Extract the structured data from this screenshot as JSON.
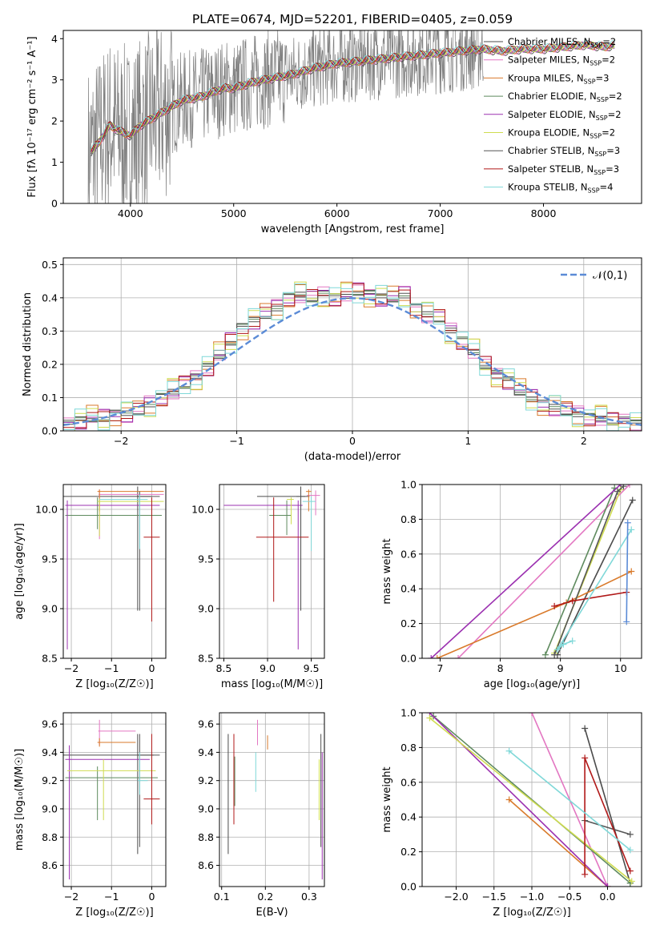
{
  "title": "PLATE=0674, MJD=52201, FIBERID=0405, z=0.059",
  "legend_labels": [
    "Chabrier MILES, N_SSP=2",
    "Salpeter MILES, N_SSP=2",
    "Kroupa MILES, N_SSP=3",
    "Chabrier ELODIE, N_SSP=2",
    "Salpeter ELODIE, N_SSP=2",
    "Kroupa ELODIE, N_SSP=2",
    "Chabrier STELIB, N_SSP=3",
    "Salpeter STELIB, N_SSP=3",
    "Kroupa STELIB, N_SSP=4"
  ],
  "model_colors": [
    "#4b4b4b",
    "#e377c2",
    "#d97a2b",
    "#5e8a5e",
    "#9b30b0",
    "#cfdc50",
    "#555555",
    "#b01818",
    "#7fd8d8"
  ],
  "chart_data": [
    {
      "type": "line",
      "title": "PLATE=0674, MJD=52201, FIBERID=0405, z=0.059",
      "xlabel": "wavelength [Angstrom, rest frame]",
      "ylabel": "Flux [f_λ 10^-17 erg cm^-2 s^-1 A^-1]",
      "xlim": [
        3350,
        8950
      ],
      "ylim": [
        0,
        4.2
      ],
      "xticks": [
        4000,
        5000,
        6000,
        7000,
        8000
      ],
      "yticks": [
        0,
        1,
        2,
        3,
        4
      ],
      "series_note": "data spectrum (gray) + 9 model fits",
      "model_curve": {
        "x": [
          3600,
          3700,
          3800,
          3900,
          4000,
          4100,
          4200,
          4300,
          4400,
          4500,
          4600,
          4700,
          4800,
          4900,
          5000,
          5200,
          5400,
          5600,
          5800,
          6000,
          6200,
          6400,
          6600,
          6800,
          7000,
          7200,
          7400,
          7600,
          7800,
          8000,
          8200,
          8400,
          8600,
          8700
        ],
        "y": [
          1.2,
          1.5,
          1.9,
          1.75,
          1.65,
          1.9,
          2.05,
          2.2,
          2.35,
          2.5,
          2.55,
          2.6,
          2.7,
          2.8,
          2.8,
          2.95,
          3.05,
          3.15,
          3.3,
          3.4,
          3.45,
          3.5,
          3.55,
          3.6,
          3.65,
          3.7,
          3.75,
          3.7,
          3.75,
          3.75,
          3.8,
          3.85,
          3.8,
          3.85
        ]
      }
    },
    {
      "type": "step",
      "xlabel": "(data-model)/error",
      "ylabel": "Normed distribution",
      "xlim": [
        -2.5,
        2.5
      ],
      "ylim": [
        0,
        0.52
      ],
      "xticks": [
        -2,
        -1,
        0,
        1,
        2
      ],
      "yticks": [
        0.0,
        0.1,
        0.2,
        0.3,
        0.4,
        0.5
      ],
      "legend": "𝒩(0,1)",
      "bin_width": 0.1,
      "hist_centers": [
        -2.45,
        -2.35,
        -2.25,
        -2.15,
        -2.05,
        -1.95,
        -1.85,
        -1.75,
        -1.65,
        -1.55,
        -1.45,
        -1.35,
        -1.25,
        -1.15,
        -1.05,
        -0.95,
        -0.85,
        -0.75,
        -0.65,
        -0.55,
        -0.45,
        -0.35,
        -0.25,
        -0.15,
        -0.05,
        0.05,
        0.15,
        0.25,
        0.35,
        0.45,
        0.55,
        0.65,
        0.75,
        0.85,
        0.95,
        1.05,
        1.15,
        1.25,
        1.35,
        1.45,
        1.55,
        1.65,
        1.75,
        1.85,
        1.95,
        2.05,
        2.15,
        2.25,
        2.35,
        2.45
      ],
      "hist_values": [
        0.02,
        0.03,
        0.04,
        0.04,
        0.05,
        0.05,
        0.06,
        0.08,
        0.1,
        0.12,
        0.14,
        0.16,
        0.19,
        0.23,
        0.27,
        0.31,
        0.33,
        0.35,
        0.37,
        0.4,
        0.41,
        0.4,
        0.41,
        0.4,
        0.41,
        0.42,
        0.41,
        0.4,
        0.4,
        0.41,
        0.37,
        0.35,
        0.34,
        0.3,
        0.27,
        0.24,
        0.2,
        0.17,
        0.15,
        0.12,
        0.1,
        0.08,
        0.07,
        0.06,
        0.05,
        0.04,
        0.04,
        0.03,
        0.03,
        0.02
      ]
    },
    {
      "type": "errorbar",
      "xlabel": "Z [log10(Z/Z⊙)]",
      "ylabel": "age [log10(age/yr)]",
      "xlim": [
        -2.2,
        0.35
      ],
      "ylim": [
        8.5,
        10.25
      ],
      "xticks": [
        -2,
        -1,
        0
      ],
      "yticks": [
        8.5,
        9.0,
        9.5,
        10.0
      ],
      "points": [
        {
          "x": -0.35,
          "y": 10.13,
          "xerr": [
            2.1,
            0.35
          ],
          "yerr": [
            1.15,
            0.1
          ]
        },
        {
          "x": -1.3,
          "y": 10.15,
          "xerr": [
            0.02,
            1.6
          ],
          "yerr": [
            0.45,
            0.05
          ]
        },
        {
          "x": -1.3,
          "y": 10.18,
          "xerr": [
            0.05,
            1.6
          ],
          "yerr": [
            0.2,
            0.02
          ]
        },
        {
          "x": -1.35,
          "y": 9.94,
          "xerr": [
            0.8,
            1.6
          ],
          "yerr": [
            0.14,
            0.18
          ]
        },
        {
          "x": -2.1,
          "y": 10.04,
          "xerr": [
            0.05,
            2.3
          ],
          "yerr": [
            1.45,
            0.05
          ]
        },
        {
          "x": -1.3,
          "y": 10.08,
          "xerr": [
            0.05,
            1.6
          ],
          "yerr": [
            0.35,
            0.03
          ]
        },
        {
          "x": -0.3,
          "y": 10.13,
          "xerr": [
            0.05,
            0.5
          ],
          "yerr": [
            1.15,
            0.05
          ]
        },
        {
          "x": 0.0,
          "y": 9.72,
          "xerr": [
            0.2,
            0.2
          ],
          "yerr": [
            0.85,
            0.4
          ]
        },
        {
          "x": -0.3,
          "y": 10.1,
          "xerr": [
            1.0,
            0.2
          ],
          "yerr": [
            0.5,
            0.05
          ]
        }
      ]
    },
    {
      "type": "errorbar",
      "xlabel": "mass [log10(M/M⊙)]",
      "ylabel": "",
      "xlim": [
        8.45,
        9.65
      ],
      "ylim": [
        8.5,
        10.25
      ],
      "xticks": [
        8.5,
        9.0,
        9.5
      ],
      "yticks": [
        8.5,
        9.0,
        9.5,
        10.0
      ],
      "points": [
        {
          "x": 9.38,
          "y": 10.13,
          "xerr": [
            0.5,
            0.1
          ],
          "yerr": [
            1.15,
            0.1
          ]
        },
        {
          "x": 9.55,
          "y": 10.14,
          "xerr": [
            0.1,
            0.05
          ],
          "yerr": [
            0.2,
            0.05
          ]
        },
        {
          "x": 9.47,
          "y": 10.18,
          "xerr": [
            0.03,
            0.03
          ],
          "yerr": [
            0.2,
            0.02
          ]
        },
        {
          "x": 9.22,
          "y": 9.94,
          "xerr": [
            0.2,
            0.05
          ],
          "yerr": [
            0.2,
            0.15
          ]
        },
        {
          "x": 9.35,
          "y": 10.04,
          "xerr": [
            0.85,
            0.05
          ],
          "yerr": [
            1.45,
            0.05
          ]
        },
        {
          "x": 9.27,
          "y": 10.1,
          "xerr": [
            0.05,
            0.03
          ],
          "yerr": [
            0.25,
            0.02
          ]
        },
        {
          "x": 9.38,
          "y": 10.13,
          "xerr": [
            0.05,
            0.05
          ],
          "yerr": [
            1.15,
            0.05
          ]
        },
        {
          "x": 9.07,
          "y": 9.72,
          "xerr": [
            0.2,
            0.4
          ],
          "yerr": [
            0.65,
            0.4
          ]
        },
        {
          "x": 9.5,
          "y": 10.08,
          "xerr": [
            0.1,
            0.05
          ],
          "yerr": [
            0.5,
            0.05
          ]
        }
      ]
    },
    {
      "type": "line",
      "xlabel": "age [log10(age/yr)]",
      "ylabel": "mass weight",
      "xlim": [
        6.7,
        10.35
      ],
      "ylim": [
        0,
        1.0
      ],
      "xticks": [
        7,
        8,
        9,
        10
      ],
      "yticks": [
        0.0,
        0.2,
        0.4,
        0.6,
        0.8,
        1.0
      ],
      "series": [
        {
          "x": [
            8.95,
            10.2
          ],
          "y": [
            0.02,
            0.91
          ]
        },
        {
          "x": [
            7.3,
            10.15
          ],
          "y": [
            0.0,
            1.0
          ]
        },
        {
          "x": [
            6.95,
            9.1,
            10.18
          ],
          "y": [
            0.0,
            0.32,
            0.5
          ]
        },
        {
          "x": [
            8.75,
            9.9
          ],
          "y": [
            0.02,
            0.98
          ]
        },
        {
          "x": [
            6.85,
            10.0
          ],
          "y": [
            0.0,
            1.0
          ]
        },
        {
          "x": [
            8.9,
            10.0
          ],
          "y": [
            0.03,
            0.97
          ]
        },
        {
          "x": [
            8.9,
            9.95,
            10.05
          ],
          "y": [
            0.02,
            0.96,
            0.99
          ]
        },
        {
          "x": [
            8.9,
            9.2,
            10.1
          ],
          "y": [
            0.3,
            0.33,
            0.38
          ]
        },
        {
          "x": [
            9.2,
            9.05,
            8.95,
            10.18
          ],
          "y": [
            0.1,
            0.08,
            0.05,
            0.74
          ]
        },
        {
          "x": [
            10.1,
            10.12
          ],
          "y": [
            0.21,
            0.78
          ]
        }
      ]
    },
    {
      "type": "errorbar",
      "xlabel": "Z [log10(Z/Z⊙)]",
      "ylabel": "mass [log10(M/M⊙)]",
      "xlim": [
        -2.2,
        0.35
      ],
      "ylim": [
        8.45,
        9.68
      ],
      "xticks": [
        -2,
        -1,
        0
      ],
      "yticks": [
        8.6,
        8.8,
        9.0,
        9.2,
        9.4,
        9.6
      ],
      "points": [
        {
          "x": -0.35,
          "y": 9.38,
          "xerr": [
            2.1,
            0.4
          ],
          "yerr": [
            0.7,
            0.15
          ]
        },
        {
          "x": -1.3,
          "y": 9.55,
          "xerr": [
            0.03,
            0.9
          ],
          "yerr": [
            0.1,
            0.08
          ]
        },
        {
          "x": -1.3,
          "y": 9.47,
          "xerr": [
            0.05,
            0.9
          ],
          "yerr": [
            0.03,
            0.03
          ]
        },
        {
          "x": -1.35,
          "y": 9.22,
          "xerr": [
            0.8,
            1.5
          ],
          "yerr": [
            0.3,
            0.08
          ]
        },
        {
          "x": -2.05,
          "y": 9.35,
          "xerr": [
            0.1,
            2.0
          ],
          "yerr": [
            0.85,
            0.1
          ]
        },
        {
          "x": -1.2,
          "y": 9.27,
          "xerr": [
            0.9,
            1.3
          ],
          "yerr": [
            0.35,
            0.08
          ]
        },
        {
          "x": -0.3,
          "y": 9.38,
          "xerr": [
            0.05,
            0.5
          ],
          "yerr": [
            0.65,
            0.15
          ]
        },
        {
          "x": 0.0,
          "y": 9.07,
          "xerr": [
            0.2,
            0.2
          ],
          "yerr": [
            0.18,
            0.46
          ]
        },
        {
          "x": -0.3,
          "y": 9.2,
          "xerr": [
            0.05,
            0.2
          ],
          "yerr": [
            0.1,
            0.2
          ]
        }
      ]
    },
    {
      "type": "errorbar",
      "xlabel": "E(B-V)",
      "ylabel": "",
      "xlim": [
        0.095,
        0.335
      ],
      "ylim": [
        8.45,
        9.68
      ],
      "xticks": [
        0.1,
        0.2,
        0.3
      ],
      "yticks": [
        8.6,
        8.8,
        9.0,
        9.2,
        9.4,
        9.6
      ],
      "points": [
        {
          "x": 0.115,
          "y": 9.38,
          "xerr": [
            0,
            0
          ],
          "yerr": [
            0.7,
            0.15
          ]
        },
        {
          "x": 0.182,
          "y": 9.55,
          "xerr": [
            0,
            0
          ],
          "yerr": [
            0.1,
            0.08
          ]
        },
        {
          "x": 0.205,
          "y": 9.47,
          "xerr": [
            0,
            0
          ],
          "yerr": [
            0.05,
            0.05
          ]
        },
        {
          "x": 0.13,
          "y": 9.22,
          "xerr": [
            0,
            0
          ],
          "yerr": [
            0.2,
            0.15
          ]
        },
        {
          "x": 0.33,
          "y": 9.35,
          "xerr": [
            0,
            0
          ],
          "yerr": [
            0.85,
            0.05
          ]
        },
        {
          "x": 0.323,
          "y": 9.27,
          "xerr": [
            0,
            0
          ],
          "yerr": [
            0.35,
            0.08
          ]
        },
        {
          "x": 0.327,
          "y": 9.38,
          "xerr": [
            0,
            0
          ],
          "yerr": [
            0.65,
            0.15
          ]
        },
        {
          "x": 0.128,
          "y": 9.07,
          "xerr": [
            0,
            0
          ],
          "yerr": [
            0.18,
            0.46
          ]
        },
        {
          "x": 0.178,
          "y": 9.2,
          "xerr": [
            0,
            0
          ],
          "yerr": [
            0.08,
            0.2
          ]
        }
      ]
    },
    {
      "type": "line",
      "xlabel": "Z [log10(Z/Z⊙)]",
      "ylabel": "mass weight",
      "xlim": [
        -2.45,
        0.45
      ],
      "ylim": [
        0,
        1.0
      ],
      "xticks": [
        -2.0,
        -1.5,
        -1.0,
        -0.5,
        0.0
      ],
      "yticks": [
        0.0,
        0.2,
        0.4,
        0.6,
        0.8,
        1.0
      ],
      "series": [
        {
          "x": [
            -0.3,
            0.3
          ],
          "y": [
            0.91,
            0.02
          ]
        },
        {
          "x": [
            -1.0,
            0.0
          ],
          "y": [
            1.0,
            0.0
          ]
        },
        {
          "x": [
            -1.3,
            0.0
          ],
          "y": [
            0.5,
            0.0
          ]
        },
        {
          "x": [
            -2.3,
            0.3
          ],
          "y": [
            0.98,
            0.02
          ]
        },
        {
          "x": [
            -2.35,
            0.0
          ],
          "y": [
            1.0,
            0.0
          ]
        },
        {
          "x": [
            -2.35,
            0.32
          ],
          "y": [
            0.97,
            0.03
          ]
        },
        {
          "x": [
            -0.3,
            0.3
          ],
          "y": [
            0.38,
            0.3
          ]
        },
        {
          "x": [
            -0.3,
            -0.3,
            0.3
          ],
          "y": [
            0.07,
            0.74,
            0.09
          ]
        },
        {
          "x": [
            -1.3,
            0.3
          ],
          "y": [
            0.78,
            0.21
          ]
        }
      ]
    }
  ]
}
